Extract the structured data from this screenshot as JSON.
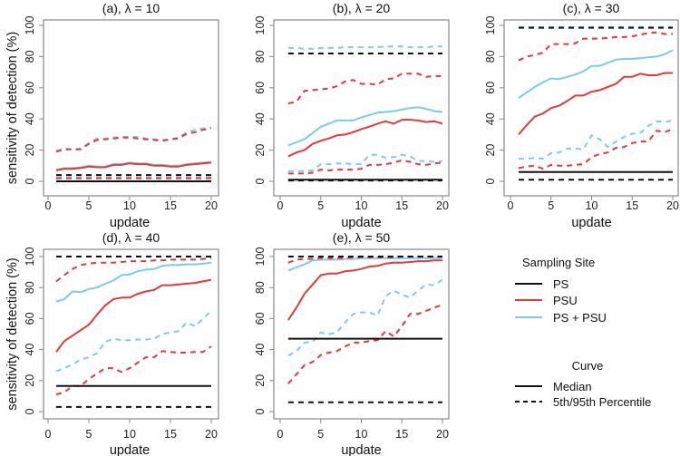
{
  "chart_data": {
    "type": "line",
    "ylabel": "sensitivity of detection (%)",
    "xlabel": "update",
    "xlim": [
      0,
      20
    ],
    "ylim": [
      0,
      100
    ],
    "xticks": [
      0,
      5,
      10,
      15,
      20
    ],
    "yticks": [
      0,
      20,
      40,
      60,
      80,
      100
    ],
    "x": [
      1,
      2,
      3,
      4,
      5,
      6,
      7,
      8,
      9,
      10,
      11,
      12,
      13,
      14,
      15,
      16,
      17,
      18,
      19,
      20
    ],
    "colors": {
      "PS": "#111111",
      "PSU": "#e4393b",
      "PS + PSU": "#7ccbea"
    },
    "legend": {
      "placement": "right",
      "site_title": "Sampling Site",
      "sites": [
        "PS",
        "PSU",
        "PS + PSU"
      ],
      "curve_title": "Curve",
      "curves": [
        "Median",
        "5th/95th Percentile"
      ]
    },
    "panels": [
      {
        "title": "(a), λ = 10",
        "series": {
          "PS": {
            "median": 0,
            "p5": 0,
            "p95": 4
          },
          "PSU": {
            "median": [
              7,
              8,
              8,
              8.5,
              9.5,
              9,
              9,
              10.5,
              10.5,
              11.5,
              11,
              11,
              10,
              10,
              9.5,
              9.5,
              10.5,
              11,
              11.5,
              12
            ],
            "p5": 2,
            "p95": [
              19,
              20.5,
              20.5,
              20.5,
              24,
              26.5,
              27,
              27.5,
              28,
              28,
              27.5,
              27,
              26.5,
              26,
              27,
              27.5,
              30.5,
              31.5,
              33,
              34
            ]
          },
          "PS + PSU": {
            "median": [
              7.5,
              8.5,
              8.5,
              9,
              10,
              9.5,
              9.5,
              11,
              11,
              12,
              11.5,
              11.5,
              10.5,
              10.5,
              10,
              10,
              11,
              11.5,
              12,
              12.5
            ],
            "p5": 2.5,
            "p95": [
              19.5,
              21,
              20.5,
              21,
              24.5,
              27.5,
              27.5,
              28,
              28.5,
              28.5,
              28.5,
              27.5,
              27,
              26.5,
              27,
              28,
              31.5,
              33,
              34,
              34.5
            ]
          }
        }
      },
      {
        "title": "(b), λ = 20",
        "series": {
          "PS": {
            "median": 1,
            "p5": 0.5,
            "p95": 82
          },
          "PSU": {
            "median": [
              16,
              18.5,
              20,
              24,
              26,
              27.5,
              29.5,
              30,
              31.5,
              33.5,
              35,
              37,
              38.5,
              37,
              39.5,
              39.5,
              39,
              38,
              38.5,
              37
            ],
            "p5": [
              5,
              5,
              5,
              5.5,
              7.5,
              7,
              7.5,
              7.5,
              7.5,
              8,
              10.5,
              10.5,
              11,
              12,
              13.5,
              12.5,
              11,
              10.5,
              11.5,
              12
            ],
            "p95": [
              50,
              51,
              58,
              58.5,
              59,
              59.5,
              61,
              64,
              65,
              62.5,
              62.5,
              62,
              65.5,
              66,
              69,
              69,
              69,
              67,
              67.5,
              67.5
            ]
          },
          "PS + PSU": {
            "median": [
              23,
              25,
              27,
              31,
              35,
              37,
              39,
              39,
              39,
              41,
              42.5,
              44,
              44.5,
              45,
              46,
              47,
              47.5,
              46.5,
              45,
              44.5
            ],
            "p5": [
              6.5,
              6.5,
              6.5,
              7,
              11,
              11,
              11.5,
              11.5,
              11,
              11,
              17,
              17,
              15,
              15.5,
              17,
              16,
              13,
              13,
              12.5,
              13
            ],
            "p95": [
              85.5,
              85.5,
              85,
              85,
              85.5,
              85.5,
              85.5,
              86,
              86,
              86,
              86,
              86,
              86.5,
              86.5,
              86.5,
              86,
              86,
              86,
              86.5,
              86.5
            ]
          }
        }
      },
      {
        "title": "(c), λ = 30",
        "series": {
          "PS": {
            "median": 6,
            "p5": 1,
            "p95": 98.5
          },
          "PSU": {
            "median": [
              30,
              36,
              41.5,
              43.5,
              47,
              48.5,
              51.5,
              55,
              55,
              57.5,
              58.5,
              60.5,
              62.5,
              67,
              67,
              69,
              68,
              68,
              69.5,
              69.5
            ],
            "p5": [
              8.5,
              9.5,
              10,
              8,
              10.5,
              10,
              10,
              10.5,
              11,
              15.5,
              17.5,
              18.5,
              21.5,
              22,
              24.5,
              25.5,
              25.5,
              32.5,
              31.5,
              33.5
            ],
            "p95": [
              77.5,
              80,
              81,
              82.5,
              88,
              88,
              88,
              88.5,
              91.5,
              91.5,
              91.5,
              92,
              92.5,
              92.5,
              93,
              94,
              95,
              95.5,
              94.5,
              94.5
            ]
          },
          "PS + PSU": {
            "median": [
              53.5,
              57,
              60.5,
              63.5,
              66,
              65.5,
              67,
              68.5,
              70.5,
              74,
              74,
              76,
              78,
              78.5,
              78.5,
              79,
              79.5,
              80,
              81.5,
              84
            ],
            "p5": [
              14.5,
              14.5,
              15,
              14.5,
              18,
              18.5,
              21,
              21,
              20.5,
              29.5,
              27,
              22,
              25.5,
              28.5,
              30.5,
              31,
              35.5,
              38.5,
              38,
              39
            ],
            "p95": 99
          }
        }
      },
      {
        "title": "(d), λ = 40",
        "series": {
          "PS": {
            "median": 16.5,
            "p5": 3,
            "p95": 100
          },
          "PSU": {
            "median": [
              38.5,
              45.5,
              49,
              52.5,
              56,
              62.5,
              68.5,
              72.5,
              73.5,
              73.5,
              76,
              77.5,
              78.5,
              81.5,
              81.5,
              82,
              82.5,
              83,
              84,
              85
            ],
            "p5": [
              11,
              12.5,
              16.5,
              16.5,
              21,
              24.5,
              28,
              28,
              25.5,
              28,
              31.5,
              35,
              35,
              39,
              38.5,
              38,
              38,
              38.5,
              38.5,
              42
            ],
            "p95": [
              84,
              88,
              92,
              94.5,
              95.5,
              96,
              96,
              96,
              96.5,
              97,
              97,
              97,
              97.5,
              97.5,
              98,
              98,
              98,
              98,
              98.5,
              99
            ]
          },
          "PS + PSU": {
            "median": [
              71,
              72.5,
              77.5,
              77,
              79,
              80,
              82.5,
              84.5,
              88,
              88.5,
              90.5,
              91.5,
              92,
              94,
              94.5,
              94.5,
              95,
              95,
              95.5,
              96
            ],
            "p5": [
              26,
              28,
              30.5,
              33.5,
              35,
              37.5,
              45,
              47,
              46,
              46,
              46.5,
              46.5,
              47,
              50,
              51,
              52,
              57.5,
              55,
              60,
              65
            ],
            "p95": 100
          }
        }
      },
      {
        "title": "(e), λ = 50",
        "series": {
          "PS": {
            "median": 47,
            "p5": 6,
            "p95": 100
          },
          "PSU": {
            "median": [
              59,
              67,
              76,
              82,
              88,
              89,
              89,
              90.5,
              91,
              92,
              93.5,
              94,
              95.5,
              96,
              96,
              96.5,
              97,
              97,
              97.5,
              97.5
            ],
            "p5": [
              18,
              24,
              30,
              32,
              36.5,
              38,
              39,
              42,
              44.5,
              44.5,
              45.5,
              46,
              52,
              48.5,
              55,
              63,
              63,
              65,
              67,
              69
            ],
            "p95": [
              96,
              98,
              98.5,
              98.5,
              99,
              99,
              99,
              99,
              99.5,
              99.5,
              99.5,
              99.5,
              99.5,
              99.5,
              100,
              100,
              100,
              100,
              100,
              100
            ]
          },
          "PS + PSU": {
            "median": [
              91,
              93,
              95,
              97.5,
              98,
              98,
              98,
              98.5,
              98.5,
              99,
              99,
              99,
              99,
              99,
              99,
              99,
              99,
              99,
              99,
              99
            ],
            "p5": [
              36,
              39,
              44.5,
              45,
              51,
              50,
              51,
              57.5,
              63,
              64,
              64,
              62,
              74.5,
              78,
              75.5,
              73.5,
              78,
              82,
              81.5,
              85
            ],
            "p95": 100
          }
        }
      }
    ]
  }
}
